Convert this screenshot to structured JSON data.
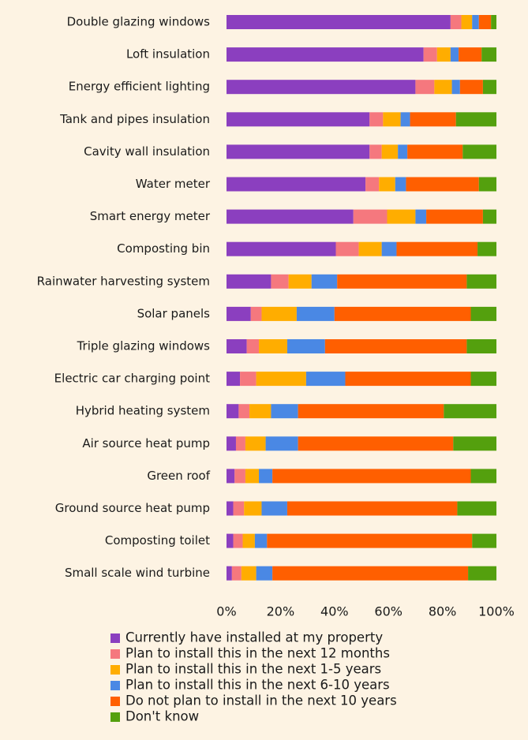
{
  "chart_data": {
    "type": "stacked_barh",
    "categories": [
      "Double glazing windows",
      "Loft insulation",
      "Energy efficient lighting",
      "Tank and pipes insulation",
      "Cavity wall insulation",
      "Water meter",
      "Smart energy meter",
      "Composting bin",
      "Rainwater harvesting system",
      "Solar panels",
      "Triple glazing windows",
      "Electric car charging point",
      "Hybrid heating system",
      "Air source heat pump",
      "Green roof",
      "Ground source heat pump",
      "Composting toilet",
      "Small scale wind turbine"
    ],
    "series": [
      {
        "name": "Currently have installed at my property",
        "color": "#8b3fbf",
        "values": [
          83,
          73,
          70,
          53,
          53,
          51.5,
          47,
          40.5,
          16.5,
          9,
          7.5,
          5,
          4.5,
          3.5,
          3,
          2.5,
          2.5,
          2
        ]
      },
      {
        "name": "Plan to install this in the next 12 months",
        "color": "#f5787e",
        "values": [
          4,
          5,
          7,
          5,
          4.5,
          5,
          12.5,
          8.5,
          6.5,
          4,
          4.5,
          6,
          4,
          3.5,
          4,
          4,
          3.5,
          3.5
        ]
      },
      {
        "name": "Plan to install this in the next 1-5 years",
        "color": "#ffad00",
        "values": [
          4,
          5,
          6.5,
          6.5,
          6,
          6,
          10.5,
          8.5,
          8.5,
          13,
          10.5,
          18.5,
          8,
          7.5,
          5,
          6.5,
          4.5,
          5.5
        ]
      },
      {
        "name": "Plan to install this in the next 6-10 years",
        "color": "#4a88e4",
        "values": [
          2.5,
          3,
          3,
          3.5,
          3.5,
          4,
          4,
          5.5,
          9.5,
          14,
          14,
          14.5,
          10,
          12,
          5,
          9.5,
          4.5,
          6
        ]
      },
      {
        "name": "Do not plan to install in the next 10 years",
        "color": "#ff5f00",
        "values": [
          4.5,
          8.5,
          8.5,
          17,
          20.5,
          27,
          21,
          30,
          48,
          50.5,
          52.5,
          46.5,
          54,
          57.5,
          73.5,
          63,
          76,
          72.5
        ]
      },
      {
        "name": "Don't know",
        "color": "#54a00e",
        "values": [
          2,
          5.5,
          5,
          15,
          12.5,
          6.5,
          5,
          7,
          11,
          9.5,
          11,
          9.5,
          19.5,
          16,
          9.5,
          14.5,
          9,
          10.5
        ]
      }
    ],
    "xlim": [
      0,
      100
    ],
    "xticks": [
      {
        "value": 0,
        "label": "0%"
      },
      {
        "value": 20,
        "label": "20%"
      },
      {
        "value": 40,
        "label": "40%"
      },
      {
        "value": 60,
        "label": "60%"
      },
      {
        "value": 80,
        "label": "80%"
      },
      {
        "value": 100,
        "label": "100%"
      }
    ]
  }
}
